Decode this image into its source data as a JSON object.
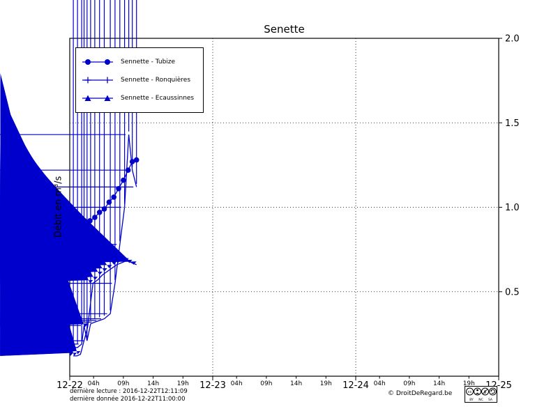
{
  "figure": {
    "title": "Senette",
    "ylabel": "Débit en m³/s"
  },
  "footer": {
    "line1": "dernière lecture : 2016-12-22T12:11:09",
    "line2": "dernière donnée  2016-12-22T11:00:00",
    "copyright": "© DroitDeRegard.be",
    "badge": {
      "cc": "cc",
      "by": "BY",
      "nc": "NC",
      "sa": "SA"
    }
  },
  "chart_data": {
    "type": "line",
    "title": "Senette",
    "xlabel": "",
    "ylabel": "Débit en m³/s",
    "x_unit": "hours since 2016-12-22 00:00",
    "xlim": [
      0,
      72
    ],
    "ylim": [
      0,
      2.0
    ],
    "grid": {
      "vertical_hours": [
        24,
        48
      ],
      "horizontal_values": [
        0.5,
        1.0,
        1.5
      ]
    },
    "line_color": "#0000cc",
    "legend_position": "upper-left",
    "x_major_ticks": [
      {
        "hour": 0,
        "label": "12-22"
      },
      {
        "hour": 24,
        "label": "12-23"
      },
      {
        "hour": 48,
        "label": "12-24"
      },
      {
        "hour": 72,
        "label": "12-25"
      }
    ],
    "x_minor_ticks": [
      {
        "hour": 4,
        "label": "04h"
      },
      {
        "hour": 9,
        "label": "09h"
      },
      {
        "hour": 14,
        "label": "14h"
      },
      {
        "hour": 19,
        "label": "19h"
      },
      {
        "hour": 28,
        "label": "04h"
      },
      {
        "hour": 33,
        "label": "09h"
      },
      {
        "hour": 38,
        "label": "14h"
      },
      {
        "hour": 43,
        "label": "19h"
      },
      {
        "hour": 52,
        "label": "04h"
      },
      {
        "hour": 57,
        "label": "09h"
      },
      {
        "hour": 62,
        "label": "14h"
      },
      {
        "hour": 67,
        "label": "19h"
      }
    ],
    "y_ticks": [
      {
        "value": 0.5,
        "label": "0.5"
      },
      {
        "value": 1.0,
        "label": "1.0"
      },
      {
        "value": 1.5,
        "label": "1.5"
      },
      {
        "value": 2.0,
        "label": "2.0"
      }
    ],
    "series": [
      {
        "name": "Sennette - Tubize",
        "marker": "circle",
        "points": [
          [
            1.0,
            0.86
          ],
          [
            1.8,
            0.88
          ],
          [
            2.6,
            0.9
          ],
          [
            3.4,
            0.92
          ],
          [
            4.2,
            0.94
          ],
          [
            5.0,
            0.97
          ],
          [
            5.8,
            0.99
          ],
          [
            6.6,
            1.03
          ],
          [
            7.4,
            1.06
          ],
          [
            8.2,
            1.11
          ],
          [
            9.0,
            1.16
          ],
          [
            9.8,
            1.22
          ],
          [
            10.5,
            1.27
          ],
          [
            11.2,
            1.28
          ]
        ]
      },
      {
        "name": "Sennette - Ronquières",
        "marker": "plus",
        "points": [
          [
            0.6,
            0.17
          ],
          [
            1.3,
            0.17
          ],
          [
            2.0,
            0.19
          ],
          [
            2.4,
            0.3
          ],
          [
            2.9,
            0.21
          ],
          [
            3.5,
            0.31
          ],
          [
            4.2,
            0.32
          ],
          [
            5.0,
            0.33
          ],
          [
            5.8,
            0.34
          ],
          [
            6.8,
            0.37
          ],
          [
            7.6,
            0.55
          ],
          [
            8.4,
            0.78
          ],
          [
            9.2,
            1.0
          ],
          [
            9.9,
            1.43
          ],
          [
            10.5,
            1.22
          ],
          [
            11.2,
            1.12
          ]
        ]
      },
      {
        "name": "Sennette - Ecaussinnes",
        "marker": "triangle",
        "points": [
          [
            0.6,
            0.12
          ],
          [
            1.2,
            0.12
          ],
          [
            1.8,
            0.13
          ],
          [
            3.0,
            0.29
          ],
          [
            3.9,
            0.55
          ],
          [
            4.7,
            0.57
          ],
          [
            5.5,
            0.6
          ],
          [
            6.3,
            0.62
          ],
          [
            7.1,
            0.64
          ],
          [
            7.9,
            0.66
          ],
          [
            8.6,
            0.67
          ],
          [
            9.3,
            0.68
          ],
          [
            9.9,
            0.68
          ],
          [
            10.5,
            0.67
          ],
          [
            11.2,
            0.66
          ]
        ]
      }
    ]
  }
}
